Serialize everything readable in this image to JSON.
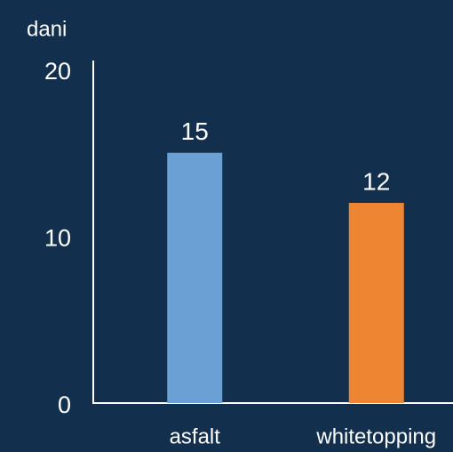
{
  "chart_data": {
    "type": "bar",
    "y_label": "dani",
    "categories": [
      "asfalt",
      "whitetopping"
    ],
    "values": [
      15,
      12
    ],
    "colors": [
      "#6aa0d4",
      "#ed8532"
    ],
    "ylim": [
      0,
      20
    ],
    "yticks": [
      0,
      10,
      20
    ],
    "grid": false
  }
}
